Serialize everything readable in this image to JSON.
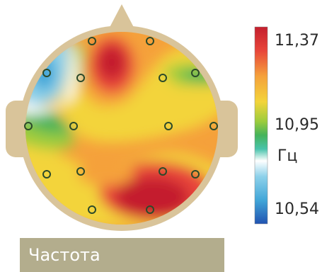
{
  "scale": {
    "max_label": "11,37",
    "mid_label": "10,95",
    "unit_label": "Гц",
    "min_label": "10,54",
    "colors": [
      "#c41f2e",
      "#e8453a",
      "#f5a13b",
      "#f3d43a",
      "#9ccc3c",
      "#45b35a",
      "#49c3ab",
      "#ffffff",
      "#8dd1ea",
      "#41a6d8",
      "#2153b1"
    ]
  },
  "caption": "Частота",
  "head_outline_color": "#d9c49a",
  "background_color": "#f5a13b"
}
